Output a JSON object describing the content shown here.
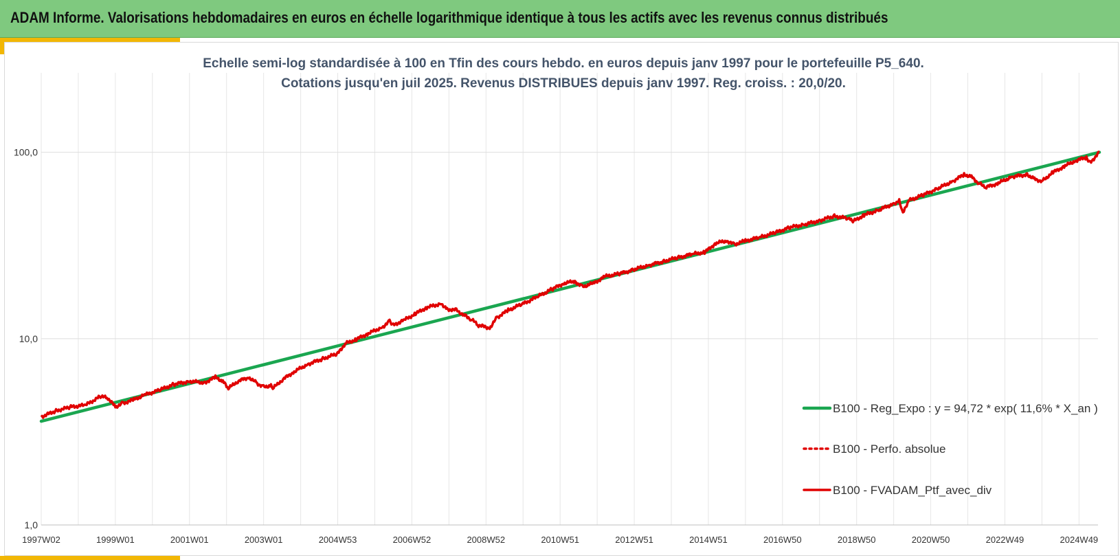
{
  "header": {
    "title": "ADAM Informe. Valorisations hebdomadaires en euros en échelle logarithmique identique à tous les actifs avec les revenus connus distribués"
  },
  "colors": {
    "header_bg": "#7fc97f",
    "accent": "#f2b705",
    "regression": "#1aa650",
    "portfolio": "#e00000",
    "subtitle": "#44546a"
  },
  "chart_data": {
    "type": "line",
    "subtitle_line1": "Echelle semi-log standardisée  à 100 en Tfin des cours hebdo.  en euros depuis janv 1997 pour le portefeuille P5_640.",
    "subtitle_line2": "Cotations jusqu'en juil 2025. Revenus DISTRIBUES depuis janv 1997. Reg. croiss. : 20,0/20.",
    "y_scale": "log",
    "ylim": [
      1,
      200
    ],
    "y_ticks": [
      {
        "value": 1,
        "label": "1,0"
      },
      {
        "value": 10,
        "label": "10,0"
      },
      {
        "value": 100,
        "label": "100,0"
      }
    ],
    "x_range": [
      1997.0,
      2025.55
    ],
    "x_ticks": [
      {
        "x": 1997.0,
        "label": "1997W02"
      },
      {
        "x": 1999.0,
        "label": "1999W01"
      },
      {
        "x": 2001.0,
        "label": "2001W01"
      },
      {
        "x": 2003.0,
        "label": "2003W01"
      },
      {
        "x": 2005.0,
        "label": "2004W53"
      },
      {
        "x": 2007.0,
        "label": "2006W52"
      },
      {
        "x": 2009.0,
        "label": "2008W52"
      },
      {
        "x": 2011.0,
        "label": "2010W51"
      },
      {
        "x": 2013.0,
        "label": "2012W51"
      },
      {
        "x": 2015.0,
        "label": "2014W51"
      },
      {
        "x": 2017.0,
        "label": "2016W50"
      },
      {
        "x": 2019.0,
        "label": "2018W50"
      },
      {
        "x": 2021.0,
        "label": "2020W50"
      },
      {
        "x": 2023.0,
        "label": "2022W49"
      },
      {
        "x": 2025.0,
        "label": "2024W49"
      }
    ],
    "grid": true,
    "legend_position": "right",
    "series": [
      {
        "name": "B100 - Reg_Expo : y = 94,72 * exp( 11,6% *  X_an )",
        "style": "solid",
        "points": [
          [
            1997.0,
            3.6
          ],
          [
            2025.55,
            100.0
          ]
        ]
      },
      {
        "name": "B100 - Perfo. absolue",
        "style": "dotted",
        "points": []
      },
      {
        "name": "B100 - FVADAM_Ptf_avec_div",
        "style": "solid",
        "points": [
          [
            1997.0,
            3.8
          ],
          [
            1997.4,
            4.1
          ],
          [
            1997.8,
            4.3
          ],
          [
            1998.2,
            4.4
          ],
          [
            1998.6,
            4.9
          ],
          [
            1998.8,
            4.8
          ],
          [
            1999.0,
            4.3
          ],
          [
            1999.2,
            4.5
          ],
          [
            1999.5,
            4.7
          ],
          [
            1999.8,
            5.0
          ],
          [
            2000.2,
            5.3
          ],
          [
            2000.6,
            5.7
          ],
          [
            2001.0,
            5.9
          ],
          [
            2001.4,
            5.8
          ],
          [
            2001.7,
            6.2
          ],
          [
            2001.9,
            5.9
          ],
          [
            2002.05,
            5.4
          ],
          [
            2002.3,
            5.9
          ],
          [
            2002.6,
            6.2
          ],
          [
            2002.8,
            5.8
          ],
          [
            2003.0,
            5.5
          ],
          [
            2003.2,
            5.6
          ],
          [
            2003.25,
            5.4
          ],
          [
            2003.5,
            6.0
          ],
          [
            2003.8,
            6.6
          ],
          [
            2004.2,
            7.3
          ],
          [
            2004.6,
            7.8
          ],
          [
            2005.0,
            8.3
          ],
          [
            2005.2,
            9.4
          ],
          [
            2005.5,
            9.9
          ],
          [
            2005.8,
            10.6
          ],
          [
            2006.2,
            11.5
          ],
          [
            2006.4,
            12.4
          ],
          [
            2006.5,
            11.8
          ],
          [
            2006.8,
            12.6
          ],
          [
            2007.1,
            13.6
          ],
          [
            2007.4,
            14.7
          ],
          [
            2007.8,
            15.4
          ],
          [
            2007.95,
            14.4
          ],
          [
            2008.2,
            14.2
          ],
          [
            2008.4,
            13.4
          ],
          [
            2008.6,
            12.7
          ],
          [
            2008.8,
            11.8
          ],
          [
            2009.1,
            11.4
          ],
          [
            2009.3,
            13.0
          ],
          [
            2009.6,
            14.2
          ],
          [
            2010.0,
            15.4
          ],
          [
            2010.4,
            16.8
          ],
          [
            2010.8,
            18.5
          ],
          [
            2011.1,
            19.8
          ],
          [
            2011.4,
            20.3
          ],
          [
            2011.6,
            19.0
          ],
          [
            2011.9,
            19.8
          ],
          [
            2012.2,
            21.5
          ],
          [
            2012.6,
            22.3
          ],
          [
            2013.0,
            23.5
          ],
          [
            2013.4,
            24.8
          ],
          [
            2013.8,
            26.0
          ],
          [
            2014.2,
            27.3
          ],
          [
            2014.6,
            28.5
          ],
          [
            2014.9,
            29.0
          ],
          [
            2015.2,
            32.5
          ],
          [
            2015.5,
            33.5
          ],
          [
            2015.7,
            32.0
          ],
          [
            2016.0,
            33.5
          ],
          [
            2016.4,
            35.0
          ],
          [
            2016.8,
            37.0
          ],
          [
            2017.2,
            39.5
          ],
          [
            2017.6,
            41.0
          ],
          [
            2018.0,
            43.0
          ],
          [
            2018.4,
            45.5
          ],
          [
            2018.8,
            44.0
          ],
          [
            2018.9,
            42.5
          ],
          [
            2019.2,
            46.0
          ],
          [
            2019.6,
            49.0
          ],
          [
            2020.0,
            53.0
          ],
          [
            2020.15,
            55.0
          ],
          [
            2020.25,
            47.0
          ],
          [
            2020.4,
            55.0
          ],
          [
            2020.8,
            59.0
          ],
          [
            2021.2,
            64.0
          ],
          [
            2021.6,
            70.0
          ],
          [
            2021.9,
            76.0
          ],
          [
            2022.1,
            74.0
          ],
          [
            2022.3,
            68.0
          ],
          [
            2022.5,
            65.0
          ],
          [
            2022.8,
            68.0
          ],
          [
            2023.2,
            74.0
          ],
          [
            2023.6,
            76.0
          ],
          [
            2023.8,
            72.0
          ],
          [
            2024.0,
            70.0
          ],
          [
            2024.3,
            78.0
          ],
          [
            2024.6,
            84.0
          ],
          [
            2024.9,
            90.0
          ],
          [
            2025.2,
            94.0
          ],
          [
            2025.3,
            88.0
          ],
          [
            2025.55,
            100.0
          ]
        ]
      }
    ]
  }
}
